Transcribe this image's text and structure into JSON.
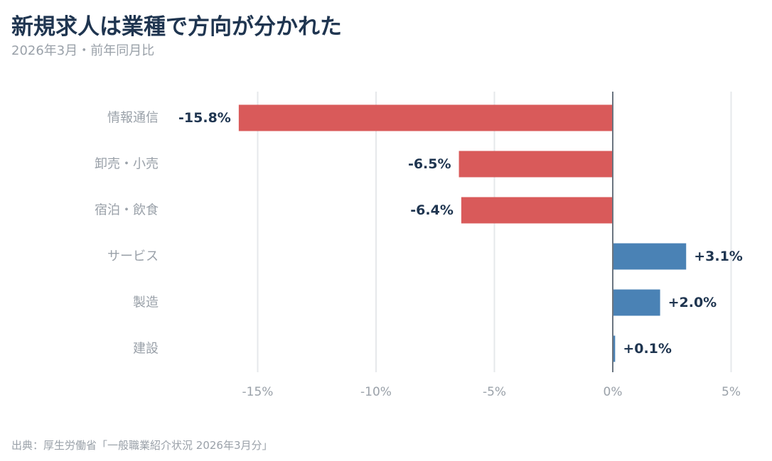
{
  "chart_data": {
    "type": "bar",
    "orientation": "horizontal",
    "title": "新規求人は業種で方向が分かれた",
    "subtitle": "2026年3月・前年同月比",
    "source": "出典：厚生労働省「一般職業紹介状況 2026年3月分」",
    "categories": [
      "情報通信",
      "卸売・小売",
      "宿泊・飲食",
      "サービス",
      "製造",
      "建設"
    ],
    "values": [
      -15.8,
      -6.5,
      -6.4,
      3.1,
      2.0,
      0.1
    ],
    "value_labels": [
      "-15.8%",
      "-6.5%",
      "-6.4%",
      "+3.1%",
      "+2.0%",
      "+0.1%"
    ],
    "xlim": [
      -15,
      5
    ],
    "xticks": [
      -15,
      -10,
      -5,
      0,
      5
    ],
    "xtick_labels": [
      "-15%",
      "-10%",
      "-5%",
      "0%",
      "5%"
    ],
    "grid": true,
    "colors": {
      "negative": "#d95a5a",
      "positive": "#4a82b5",
      "zero_line": "#6b7580",
      "grid": "#e6e8eb"
    }
  }
}
